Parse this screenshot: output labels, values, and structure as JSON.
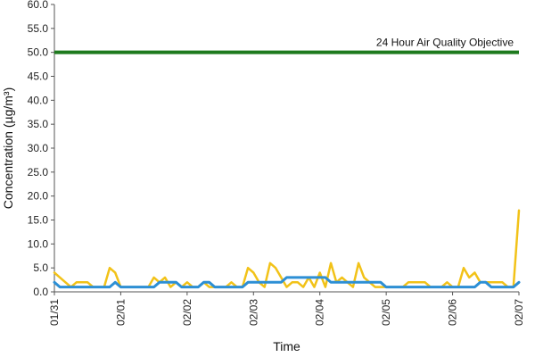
{
  "chart_data": {
    "type": "line",
    "xlabel": "Time",
    "ylabel": "Concentration (µg/m³)",
    "ylim": [
      0,
      60
    ],
    "yticks": [
      "0.0",
      "5.0",
      "10.0",
      "15.0",
      "20.0",
      "25.0",
      "30.0",
      "35.0",
      "40.0",
      "45.0",
      "50.0",
      "55.0",
      "60.0"
    ],
    "x_tick_labels": [
      "01/31",
      "02/01",
      "02/02",
      "02/03",
      "02/04",
      "02/05",
      "02/06",
      "02/07"
    ],
    "grid": false,
    "annotation": {
      "text": "24 Hour Air Quality Objective",
      "value": 50.0
    },
    "colors": {
      "objective": "#1e7a1e",
      "yellow_series": "#f2c218",
      "blue_series": "#2d8fd5"
    },
    "series": [
      {
        "key": "yellow",
        "x_hours": [
          0,
          2,
          4,
          6,
          8,
          10,
          12,
          14,
          16,
          18,
          20,
          22,
          24,
          26,
          28,
          30,
          32,
          34,
          36,
          38,
          40,
          42,
          44,
          46,
          48,
          50,
          52,
          54,
          56,
          58,
          60,
          62,
          64,
          66,
          68,
          70,
          72,
          74,
          76,
          78,
          80,
          82,
          84,
          86,
          88,
          90,
          92,
          94,
          96,
          98,
          100,
          102,
          104,
          106,
          108,
          110,
          112,
          114,
          116,
          118,
          120,
          122,
          124,
          126,
          128,
          130,
          132,
          134,
          136,
          138,
          140,
          142,
          144,
          146,
          148,
          150,
          152,
          154,
          156,
          158,
          160,
          162,
          164,
          166,
          168
        ],
        "values": [
          4,
          3,
          2,
          1,
          2,
          2,
          2,
          1,
          1,
          1,
          5,
          4,
          1,
          1,
          1,
          1,
          1,
          1,
          3,
          2,
          3,
          1,
          2,
          1,
          2,
          1,
          1,
          2,
          1,
          1,
          1,
          1,
          2,
          1,
          1,
          5,
          4,
          2,
          1,
          6,
          5,
          3,
          1,
          2,
          2,
          1,
          3,
          1,
          4,
          1,
          6,
          2,
          3,
          2,
          1,
          6,
          3,
          2,
          1,
          1,
          1,
          1,
          1,
          1,
          2,
          2,
          2,
          2,
          1,
          1,
          1,
          2,
          1,
          1,
          5,
          3,
          4,
          2,
          2,
          2,
          2,
          2,
          1,
          1,
          17
        ]
      },
      {
        "key": "blue",
        "x_hours": [
          0,
          2,
          4,
          6,
          8,
          10,
          12,
          14,
          16,
          18,
          20,
          22,
          24,
          26,
          28,
          30,
          32,
          34,
          36,
          38,
          40,
          42,
          44,
          46,
          48,
          50,
          52,
          54,
          56,
          58,
          60,
          62,
          64,
          66,
          68,
          70,
          72,
          74,
          76,
          78,
          80,
          82,
          84,
          86,
          88,
          90,
          92,
          94,
          96,
          98,
          100,
          102,
          104,
          106,
          108,
          110,
          112,
          114,
          116,
          118,
          120,
          122,
          124,
          126,
          128,
          130,
          132,
          134,
          136,
          138,
          140,
          142,
          144,
          146,
          148,
          150,
          152,
          154,
          156,
          158,
          160,
          162,
          164,
          166,
          168
        ],
        "values": [
          2,
          1,
          1,
          1,
          1,
          1,
          1,
          1,
          1,
          1,
          1,
          2,
          1,
          1,
          1,
          1,
          1,
          1,
          1,
          2,
          2,
          2,
          2,
          1,
          1,
          1,
          1,
          2,
          2,
          1,
          1,
          1,
          1,
          1,
          1,
          2,
          2,
          2,
          2,
          2,
          2,
          2,
          3,
          3,
          3,
          3,
          3,
          3,
          3,
          3,
          2,
          2,
          2,
          2,
          2,
          2,
          2,
          2,
          2,
          2,
          1,
          1,
          1,
          1,
          1,
          1,
          1,
          1,
          1,
          1,
          1,
          1,
          1,
          1,
          1,
          1,
          1,
          2,
          2,
          1,
          1,
          1,
          1,
          1,
          2
        ]
      }
    ]
  }
}
